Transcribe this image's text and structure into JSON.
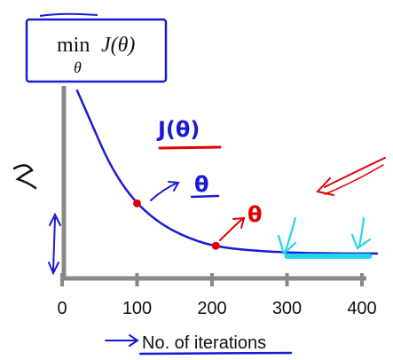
{
  "chart_data": {
    "type": "line",
    "title": "min J(θ)",
    "title_parts": {
      "operator": "min",
      "subscript": "θ",
      "function": "J(θ)"
    },
    "xlabel": "No. of iterations",
    "ylabel": "",
    "xlim": [
      0,
      400
    ],
    "xticks": [
      0,
      100,
      200,
      300,
      400
    ],
    "grid": false,
    "series": [
      {
        "x": [
          20,
          40,
          60,
          80,
          100,
          120,
          140,
          160,
          180,
          200,
          220,
          240,
          260,
          280,
          300,
          330,
          360,
          390,
          420
        ],
        "y": [
          1.0,
          0.8,
          0.6,
          0.45,
          0.34,
          0.26,
          0.2,
          0.155,
          0.12,
          0.095,
          0.08,
          0.07,
          0.063,
          0.058,
          0.054,
          0.05,
          0.048,
          0.047,
          0.047
        ],
        "color": "#1a1ad6"
      }
    ],
    "points": [
      {
        "x": 100,
        "y": 0.34,
        "color": "#e00000"
      },
      {
        "x": 205,
        "y": 0.092,
        "color": "#e00000"
      }
    ],
    "annotations": [
      {
        "text": "J(θ)",
        "color": "#1a1ad6",
        "underline_color": "#e00000"
      },
      {
        "text": "θ",
        "color": "#1a1ad6",
        "near": "first-point"
      },
      {
        "text": "θ",
        "color": "#e00000",
        "near": "second-point"
      }
    ],
    "highlight_range": {
      "x": [
        300,
        410
      ],
      "color": "#20d7e8"
    }
  }
}
